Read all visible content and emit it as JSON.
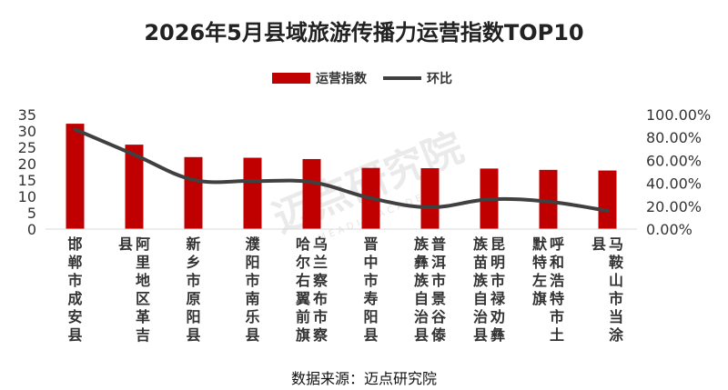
{
  "chart_data": {
    "type": "bar",
    "title": "2026年5月县域旅游传播力运营指数TOP10",
    "categories": [
      "邯郸市成安县",
      "阿里地区革吉县",
      "新乡市原阳县",
      "濮阳市南乐县",
      "乌兰察布市察哈尔右翼前旗",
      "晋中市寿阳县",
      "普洱市景谷傣族彝族自治县",
      "昆明市禄劝彝族苗族自治县",
      "呼和浩特市土默特左旗",
      "马鞍山市当涂县"
    ],
    "category_lines": [
      [
        "邯郸市成安县"
      ],
      [
        "阿里地区革吉",
        "县"
      ],
      [
        "新乡市原阳县"
      ],
      [
        "濮阳市南乐县"
      ],
      [
        "乌兰察布市察",
        "哈尔右翼前旗"
      ],
      [
        "晋中市寿阳县"
      ],
      [
        "普洱市景谷傣",
        "族彝族自治县"
      ],
      [
        "昆明市禄劝彝",
        "族苗族自治县"
      ],
      [
        "呼和浩特市土",
        "默特左旗"
      ],
      [
        "马鞍山市当涂",
        "县"
      ]
    ],
    "series": [
      {
        "name": "运营指数",
        "type": "bar",
        "axis": "left",
        "color": "#c00000",
        "values": [
          32.2,
          25.8,
          22.0,
          21.8,
          21.4,
          18.7,
          18.6,
          18.5,
          18.1,
          17.9
        ]
      },
      {
        "name": "环比",
        "type": "line",
        "axis": "right",
        "color": "#404040",
        "values": [
          87.0,
          65.0,
          43.0,
          42.0,
          41.0,
          27.0,
          19.0,
          26.0,
          24.0,
          16.0
        ]
      }
    ],
    "yleft": {
      "min": 0,
      "max": 35,
      "ticks": [
        "0",
        "5",
        "10",
        "15",
        "20",
        "25",
        "30",
        "35"
      ]
    },
    "yright": {
      "min": 0,
      "max": 100,
      "ticks": [
        "0.00%",
        "20.00%",
        "40.00%",
        "60.00%",
        "80.00%",
        "100.00%"
      ]
    },
    "legend_position": "top-center",
    "grid": false
  },
  "watermark": {
    "text": "迈点研究院",
    "subtext": "MEADIN ACADEMY"
  },
  "source": "数据来源：迈点研究院"
}
